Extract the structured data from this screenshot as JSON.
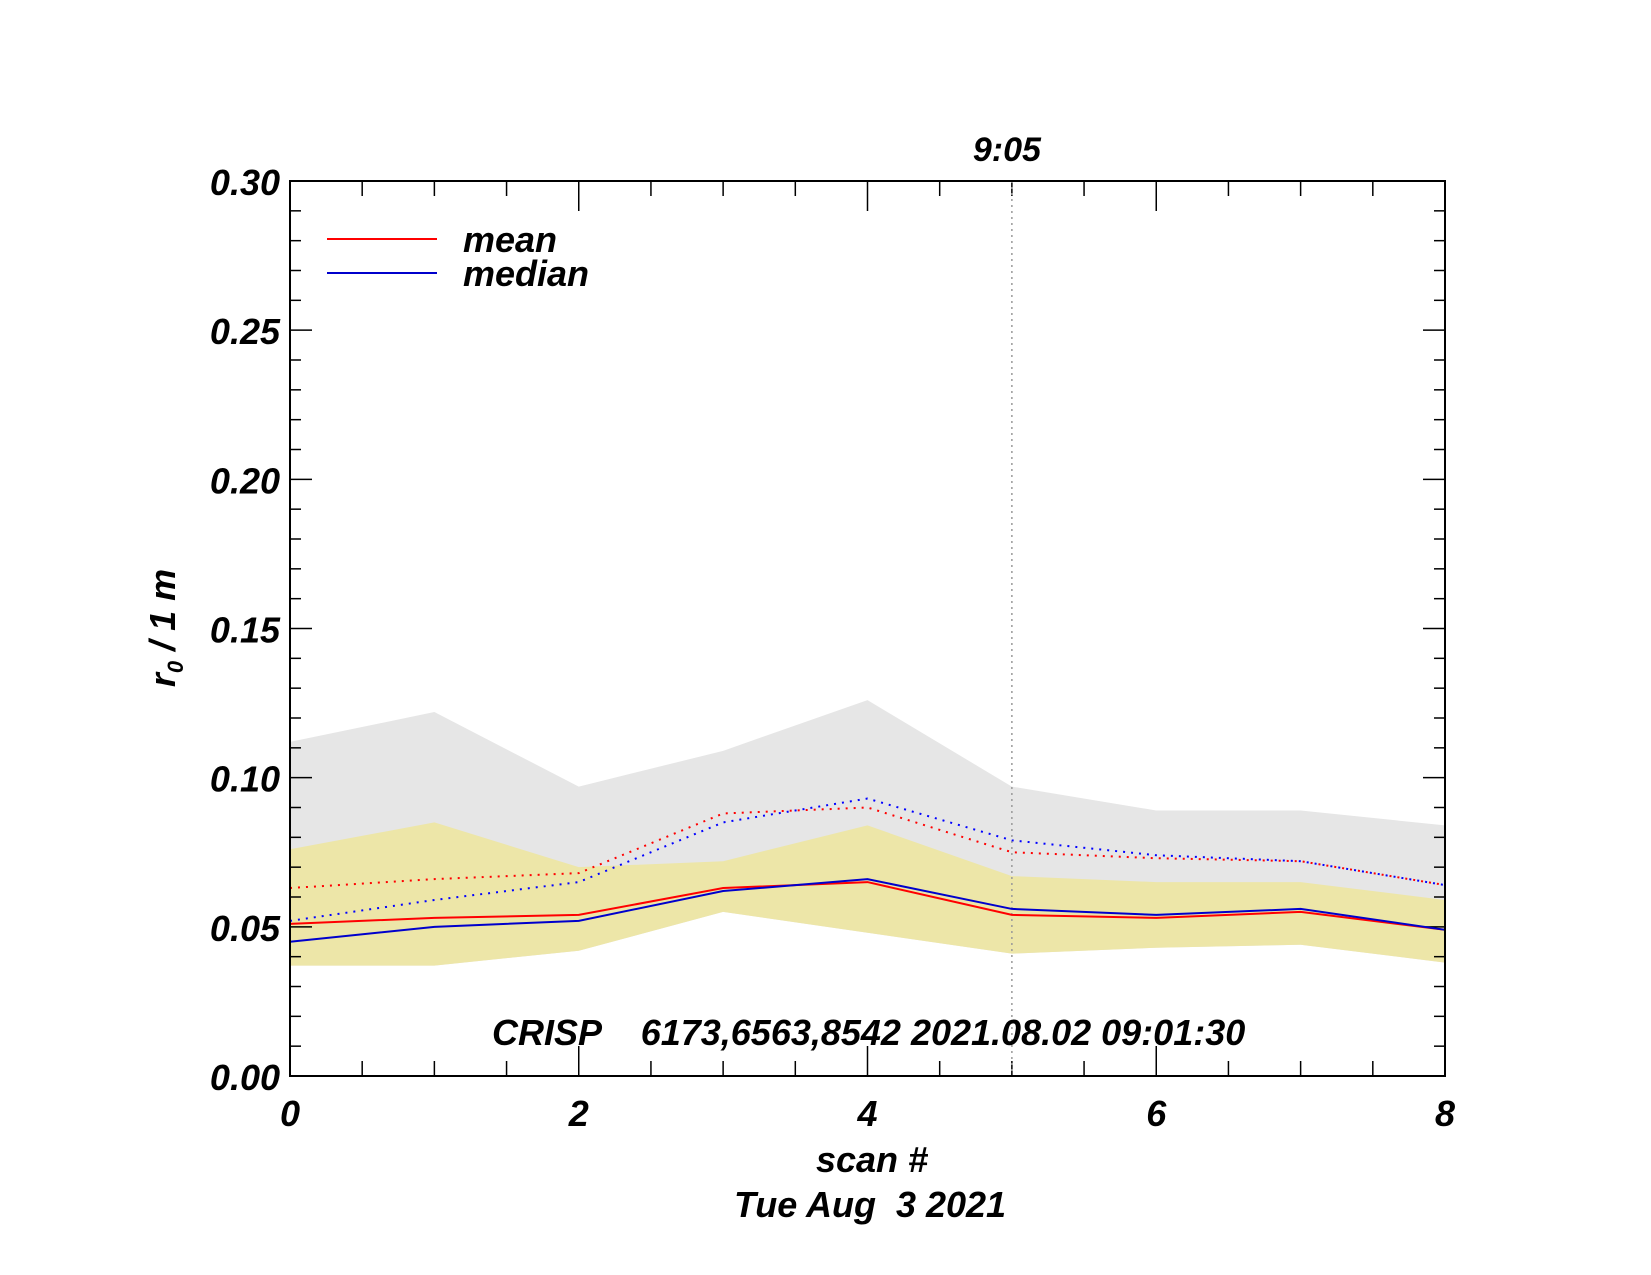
{
  "chart_data": {
    "type": "line",
    "x": [
      0,
      1,
      2,
      3,
      4,
      5,
      6,
      7,
      8
    ],
    "xlim": [
      0,
      8
    ],
    "ylim": [
      0,
      0.3
    ],
    "xticks": [
      "0",
      "2",
      "4",
      "6",
      "8"
    ],
    "yticks": [
      "0.00",
      "0.05",
      "0.10",
      "0.15",
      "0.20",
      "0.25",
      "0.30"
    ],
    "xlabel": "scan #",
    "date_label": "Tue Aug  3 2021",
    "ylabel_main": "r",
    "ylabel_sub": "0",
    "ylabel_rest": " / 1 m",
    "annotation": "CRISP    6173,6563,8542 2021.08.02 09:01:30",
    "marker": {
      "x": 5,
      "label": "9:05"
    },
    "legend_position": "top-left",
    "series": [
      {
        "name": "mean",
        "color": "#ff0000",
        "style": "solid",
        "values": [
          0.051,
          0.053,
          0.054,
          0.063,
          0.065,
          0.054,
          0.053,
          0.055,
          0.049
        ]
      },
      {
        "name": "median",
        "color": "#0000cc",
        "style": "solid",
        "values": [
          0.045,
          0.05,
          0.052,
          0.062,
          0.066,
          0.056,
          0.054,
          0.056,
          0.049
        ]
      },
      {
        "color": "#ff0000",
        "style": "dotted",
        "values": [
          0.063,
          0.066,
          0.068,
          0.088,
          0.09,
          0.075,
          0.073,
          0.072,
          0.064
        ]
      },
      {
        "color": "#0000ff",
        "style": "dotted",
        "values": [
          0.052,
          0.059,
          0.065,
          0.085,
          0.093,
          0.079,
          0.074,
          0.072,
          0.064
        ]
      }
    ],
    "bands": [
      {
        "color": "#e6e6e6",
        "upper": [
          0.112,
          0.122,
          0.097,
          0.109,
          0.126,
          0.097,
          0.089,
          0.089,
          0.084
        ],
        "lower": [
          0.037,
          0.037,
          0.042,
          0.055,
          0.048,
          0.041,
          0.043,
          0.044,
          0.038
        ]
      },
      {
        "color": "#ede6a8",
        "upper": [
          0.076,
          0.085,
          0.07,
          0.072,
          0.084,
          0.067,
          0.065,
          0.065,
          0.059
        ],
        "lower": [
          0.037,
          0.037,
          0.042,
          0.055,
          0.048,
          0.041,
          0.043,
          0.044,
          0.038
        ]
      }
    ]
  }
}
